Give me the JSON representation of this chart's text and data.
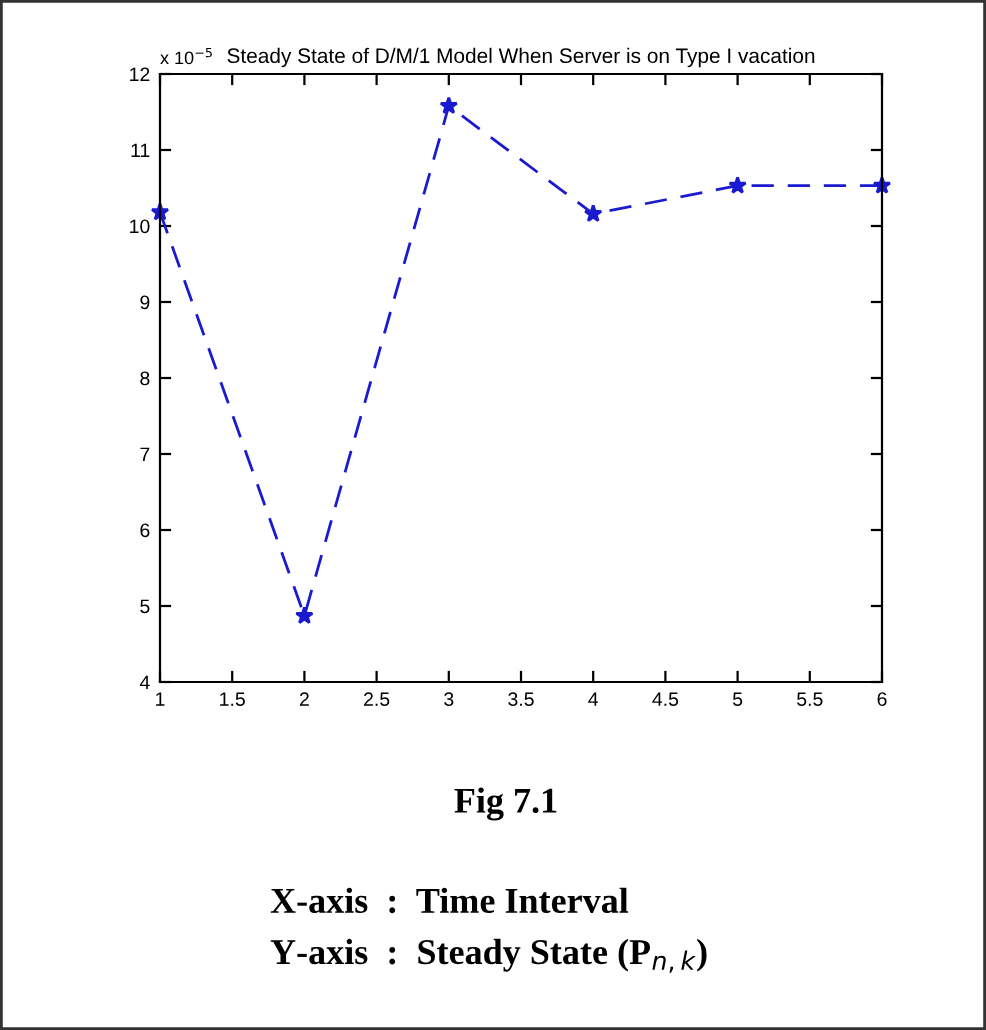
{
  "chart_data": {
    "type": "line",
    "title": "Steady State of D/M/1 Model When Server is on Type I vacation",
    "x": [
      1,
      2,
      3,
      4,
      5,
      6
    ],
    "series": [
      {
        "color": "#1a1ad0",
        "values": [
          10.18,
          4.87,
          11.58,
          10.16,
          10.53,
          10.53
        ]
      }
    ],
    "xlim": [
      1,
      6
    ],
    "xticks": [
      1,
      1.5,
      2,
      2.5,
      3,
      3.5,
      4,
      4.5,
      5,
      5.5,
      6
    ],
    "ylim": [
      4,
      12
    ],
    "yticks": [
      4,
      5,
      6,
      7,
      8,
      9,
      10,
      11,
      12
    ],
    "marker": "star",
    "line_style": "dashed",
    "grid": false,
    "legend": false,
    "annotations": [
      "x 10$^{−5}$",
      "Fig 7.1",
      "X-axis  :  Time Interval",
      "Y-axis  :  Steady State (P$_{n,k}$)"
    ]
  }
}
